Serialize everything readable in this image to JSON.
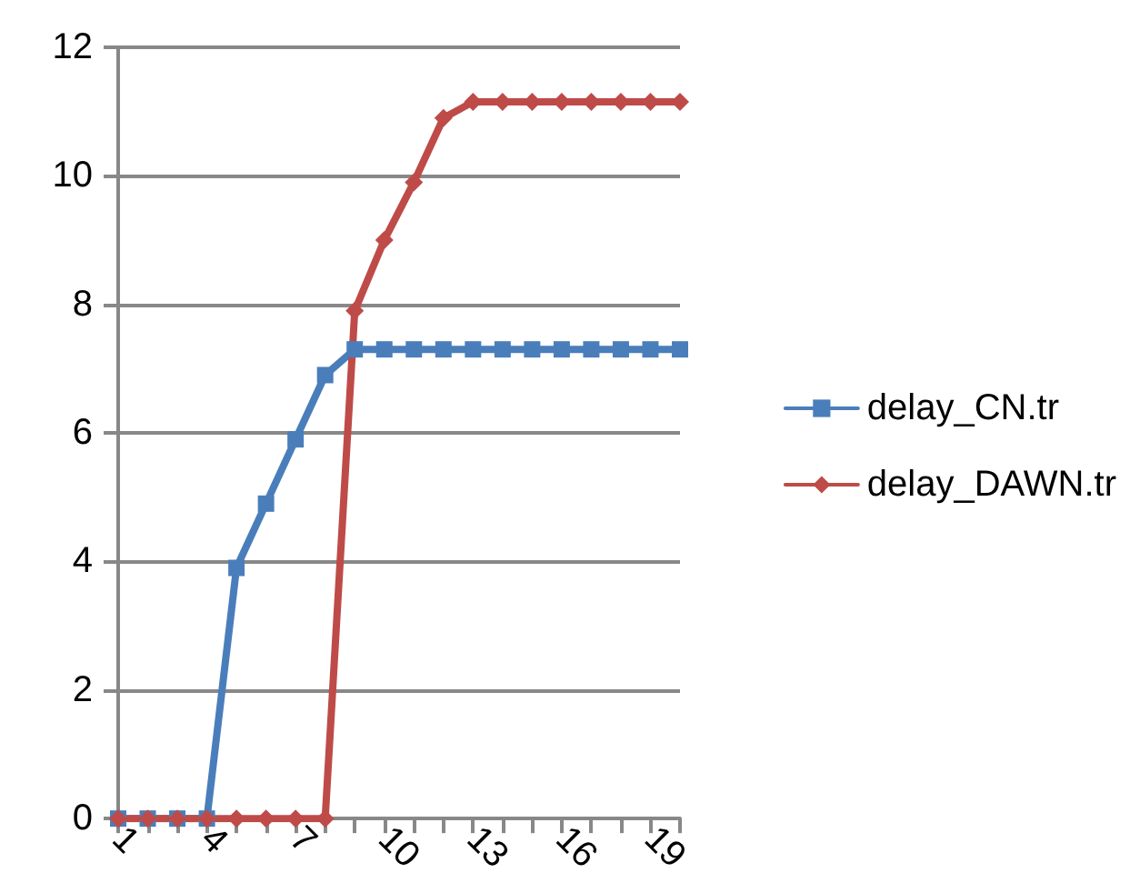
{
  "chart_data": {
    "type": "line",
    "categories": [
      "1",
      null,
      null,
      "4",
      null,
      null,
      "7",
      null,
      null,
      "10",
      null,
      null,
      "13",
      null,
      null,
      "16",
      null,
      null,
      "19",
      null
    ],
    "series": [
      {
        "name": "delay_CN.tr",
        "color": "#4a7ebb",
        "marker": "square",
        "values": [
          0,
          0,
          0,
          0,
          3.9,
          4.9,
          5.9,
          6.9,
          7.3,
          7.3,
          7.3,
          7.3,
          7.3,
          7.3,
          7.3,
          7.3,
          7.3,
          7.3,
          7.3,
          7.3
        ]
      },
      {
        "name": "delay_DAWN.tr",
        "color": "#be4b48",
        "marker": "diamond",
        "values": [
          0,
          0,
          0,
          0,
          0,
          0,
          0,
          0,
          7.9,
          9.0,
          9.9,
          10.9,
          11.15,
          11.15,
          11.15,
          11.15,
          11.15,
          11.15,
          11.15,
          11.15
        ]
      }
    ],
    "ylim": [
      0,
      12
    ],
    "yticks": [
      0,
      2,
      4,
      6,
      8,
      10,
      12
    ],
    "grid": "y",
    "legend": "right"
  }
}
